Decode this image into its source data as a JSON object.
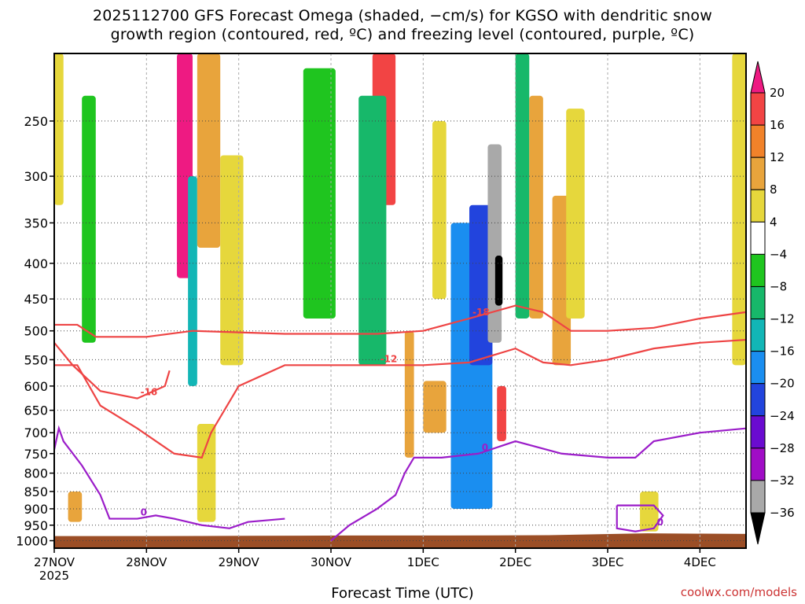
{
  "title_line1": "2025112700 GFS Forecast Omega (shaded, −cm/s) for KGSO with dendritic snow",
  "title_line2": "growth region (contoured, red, ºC) and freezing level (contoured, purple, ºC)",
  "x_axis_title": "Forecast Time (UTC)",
  "credit": "coolwx.com/models",
  "chart_data": {
    "type": "heatmap",
    "title": "2025112700 GFS Forecast Omega (shaded, −cm/s) for KGSO with dendritic snow growth region (contoured, red, ºC) and freezing level (contoured, purple, ºC)",
    "xlabel": "Forecast Time (UTC)",
    "ylabel": "",
    "y_scale": "log-pressure (inverted)",
    "y_ticks": [
      250,
      300,
      350,
      400,
      450,
      500,
      550,
      600,
      650,
      700,
      750,
      800,
      850,
      900,
      950,
      1000
    ],
    "y_range_hpa": [
      200,
      1025
    ],
    "x_ticks": [
      "27NOV",
      "28NOV",
      "29NOV",
      "30NOV",
      "1DEC",
      "2DEC",
      "3DEC",
      "4DEC"
    ],
    "x_tick_sublabel": "2025",
    "x_range_days": [
      0,
      7.5
    ],
    "grid": true,
    "colorbar": {
      "unit": "-cm/s",
      "labels": [
        "20",
        "16",
        "12",
        "8",
        "4",
        "−4",
        "−8",
        "−12",
        "−16",
        "−20",
        "−24",
        "−28",
        "−32",
        "−36"
      ],
      "bins": [
        {
          "range": ">20",
          "color": "#ee1a82"
        },
        {
          "range": "16 to 20",
          "color": "#f24444"
        },
        {
          "range": "12 to 16",
          "color": "#f1822a"
        },
        {
          "range": "8 to 12",
          "color": "#e8a43c"
        },
        {
          "range": "4 to 8",
          "color": "#e6d73c"
        },
        {
          "range": "-4 to 4",
          "color": "#ffffff"
        },
        {
          "range": "-8 to -4",
          "color": "#1fc51f"
        },
        {
          "range": "-12 to -8",
          "color": "#17b86a"
        },
        {
          "range": "-16 to -12",
          "color": "#12b6b6"
        },
        {
          "range": "-20 to -16",
          "color": "#1a8ef0"
        },
        {
          "range": "-24 to -20",
          "color": "#2244dd"
        },
        {
          "range": "-28 to -24",
          "color": "#6a0bd0"
        },
        {
          "range": "-32 to -28",
          "color": "#a00dc6"
        },
        {
          "range": "-36 to -32",
          "color": "#a9a9a9"
        },
        {
          "range": "<-36",
          "color": "#000000"
        }
      ]
    },
    "omega_cells": [
      {
        "t": [
          1.33,
          1.5
        ],
        "p": [
          200,
          420
        ],
        "v": 22
      },
      {
        "t": [
          1.45,
          1.55
        ],
        "p": [
          300,
          600
        ],
        "v": -14
      },
      {
        "t": [
          1.55,
          1.8
        ],
        "p": [
          200,
          380
        ],
        "v": 10
      },
      {
        "t": [
          1.8,
          2.05
        ],
        "p": [
          280,
          560
        ],
        "v": 6
      },
      {
        "t": [
          0.3,
          0.45
        ],
        "p": [
          230,
          520
        ],
        "v": -6
      },
      {
        "t": [
          0.0,
          0.1
        ],
        "p": [
          200,
          330
        ],
        "v": 5
      },
      {
        "t": [
          2.7,
          3.05
        ],
        "p": [
          210,
          480
        ],
        "v": -7
      },
      {
        "t": [
          3.45,
          3.7
        ],
        "p": [
          200,
          330
        ],
        "v": 18
      },
      {
        "t": [
          3.3,
          3.6
        ],
        "p": [
          230,
          560
        ],
        "v": -9
      },
      {
        "t": [
          3.8,
          3.9
        ],
        "p": [
          500,
          760
        ],
        "v": 12
      },
      {
        "t": [
          4.1,
          4.25
        ],
        "p": [
          250,
          450
        ],
        "v": 5
      },
      {
        "t": [
          4.0,
          4.25
        ],
        "p": [
          590,
          700
        ],
        "v": 10
      },
      {
        "t": [
          4.3,
          4.75
        ],
        "p": [
          350,
          900
        ],
        "v": -18
      },
      {
        "t": [
          4.5,
          4.75
        ],
        "p": [
          330,
          560
        ],
        "v": -23
      },
      {
        "t": [
          4.7,
          4.85
        ],
        "p": [
          270,
          520
        ],
        "v": -34
      },
      {
        "t": [
          4.78,
          4.86
        ],
        "p": [
          390,
          460
        ],
        "v": -40
      },
      {
        "t": [
          4.8,
          4.9
        ],
        "p": [
          600,
          720
        ],
        "v": 18
      },
      {
        "t": [
          5.0,
          5.15
        ],
        "p": [
          200,
          480
        ],
        "v": -10
      },
      {
        "t": [
          5.15,
          5.3
        ],
        "p": [
          230,
          480
        ],
        "v": 12
      },
      {
        "t": [
          5.4,
          5.6
        ],
        "p": [
          320,
          560
        ],
        "v": 12
      },
      {
        "t": [
          5.55,
          5.75
        ],
        "p": [
          240,
          480
        ],
        "v": 5
      },
      {
        "t": [
          7.35,
          7.5
        ],
        "p": [
          200,
          560
        ],
        "v": 8
      },
      {
        "t": [
          6.35,
          6.55
        ],
        "p": [
          850,
          970
        ],
        "v": 5
      },
      {
        "t": [
          0.15,
          0.3
        ],
        "p": [
          850,
          940
        ],
        "v": 10
      },
      {
        "t": [
          1.55,
          1.75
        ],
        "p": [
          680,
          940
        ],
        "v": 8
      }
    ],
    "contours": [
      {
        "kind": "dendritic",
        "color": "#ee4444",
        "labels": [
          "-12",
          "-16",
          "-18"
        ],
        "lines": [
          {
            "label": "-18",
            "points": [
              [
                0.0,
                490
              ],
              [
                0.25,
                490
              ],
              [
                0.45,
                510
              ],
              [
                1.0,
                510
              ],
              [
                1.5,
                500
              ],
              [
                2.5,
                505
              ],
              [
                3.5,
                505
              ],
              [
                4.0,
                500
              ],
              [
                4.5,
                480
              ],
              [
                5.0,
                460
              ],
              [
                5.3,
                470
              ],
              [
                5.6,
                500
              ],
              [
                6.0,
                500
              ],
              [
                6.5,
                495
              ],
              [
                7.0,
                480
              ],
              [
                7.5,
                470
              ]
            ]
          },
          {
            "label": "-12",
            "points": [
              [
                0.0,
                560
              ],
              [
                0.25,
                560
              ],
              [
                0.5,
                640
              ],
              [
                0.9,
                690
              ],
              [
                1.3,
                750
              ],
              [
                1.6,
                760
              ],
              [
                1.7,
                700
              ],
              [
                2.0,
                600
              ],
              [
                2.5,
                560
              ],
              [
                3.5,
                560
              ],
              [
                4.0,
                560
              ],
              [
                4.5,
                555
              ],
              [
                5.0,
                530
              ],
              [
                5.3,
                555
              ],
              [
                5.6,
                560
              ],
              [
                6.0,
                550
              ],
              [
                6.5,
                530
              ],
              [
                7.0,
                520
              ],
              [
                7.5,
                515
              ]
            ]
          },
          {
            "label": "-16",
            "points": [
              [
                0.0,
                520
              ],
              [
                0.2,
                560
              ],
              [
                0.5,
                610
              ],
              [
                0.9,
                625
              ],
              [
                1.2,
                600
              ],
              [
                1.25,
                570
              ]
            ]
          }
        ]
      },
      {
        "kind": "freezing",
        "color": "#9b1dc9",
        "labels": [
          "0"
        ],
        "lines": [
          {
            "label": "0",
            "points": [
              [
                0.0,
                740
              ],
              [
                0.05,
                690
              ],
              [
                0.1,
                720
              ],
              [
                0.3,
                780
              ],
              [
                0.5,
                860
              ],
              [
                0.6,
                930
              ],
              [
                0.9,
                930
              ],
              [
                1.1,
                920
              ],
              [
                1.3,
                930
              ],
              [
                1.6,
                950
              ],
              [
                1.9,
                960
              ],
              [
                2.1,
                940
              ],
              [
                2.5,
                930
              ]
            ]
          },
          {
            "label": "0",
            "points": [
              [
                3.0,
                1000
              ],
              [
                3.2,
                950
              ],
              [
                3.5,
                900
              ],
              [
                3.7,
                860
              ],
              [
                3.8,
                800
              ],
              [
                3.9,
                760
              ],
              [
                4.2,
                760
              ],
              [
                4.6,
                750
              ],
              [
                5.0,
                720
              ],
              [
                5.5,
                750
              ],
              [
                6.0,
                760
              ],
              [
                6.3,
                760
              ],
              [
                6.5,
                720
              ],
              [
                7.0,
                700
              ],
              [
                7.5,
                690
              ]
            ]
          },
          {
            "label": "0",
            "points": [
              [
                6.1,
                890
              ],
              [
                6.3,
                890
              ],
              [
                6.5,
                890
              ],
              [
                6.6,
                920
              ],
              [
                6.5,
                960
              ],
              [
                6.3,
                970
              ],
              [
                6.1,
                960
              ],
              [
                6.1,
                890
              ]
            ]
          }
        ]
      }
    ],
    "terrain_surface_hpa": [
      985,
      985,
      984,
      983,
      983,
      982,
      976,
      978
    ]
  }
}
